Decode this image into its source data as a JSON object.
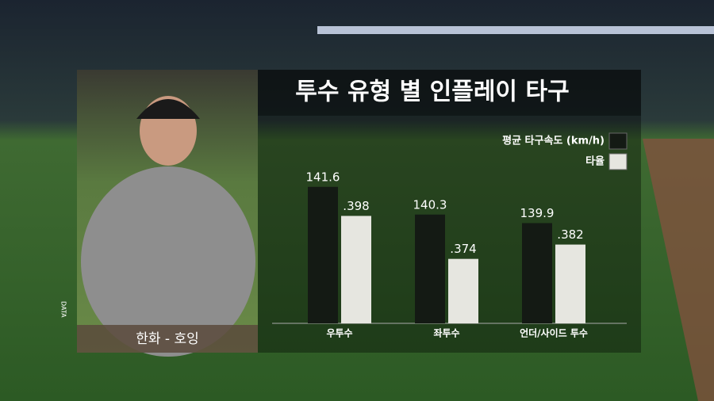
{
  "chart_data": {
    "type": "bar",
    "title": "투수 유형 별 인플레이 타구",
    "categories": [
      "우투수",
      "좌투수",
      "언더/사이드 투수"
    ],
    "series": [
      {
        "name": "평균 타구속도 (km/h)",
        "color": "#141a14",
        "values": [
          141.6,
          140.3,
          139.9
        ]
      },
      {
        "name": "타율",
        "color": "#e6e6e0",
        "values": [
          0.398,
          0.374,
          0.382
        ],
        "value_labels": [
          ".398",
          ".374",
          ".382"
        ],
        "axis": "y2"
      }
    ],
    "ylim": [
      135.2,
      142.0
    ],
    "y2lim": [
      0.338,
      0.419
    ],
    "legend": "top-right"
  },
  "player_caption": "한화 - 호잉",
  "side_label": "DATA"
}
